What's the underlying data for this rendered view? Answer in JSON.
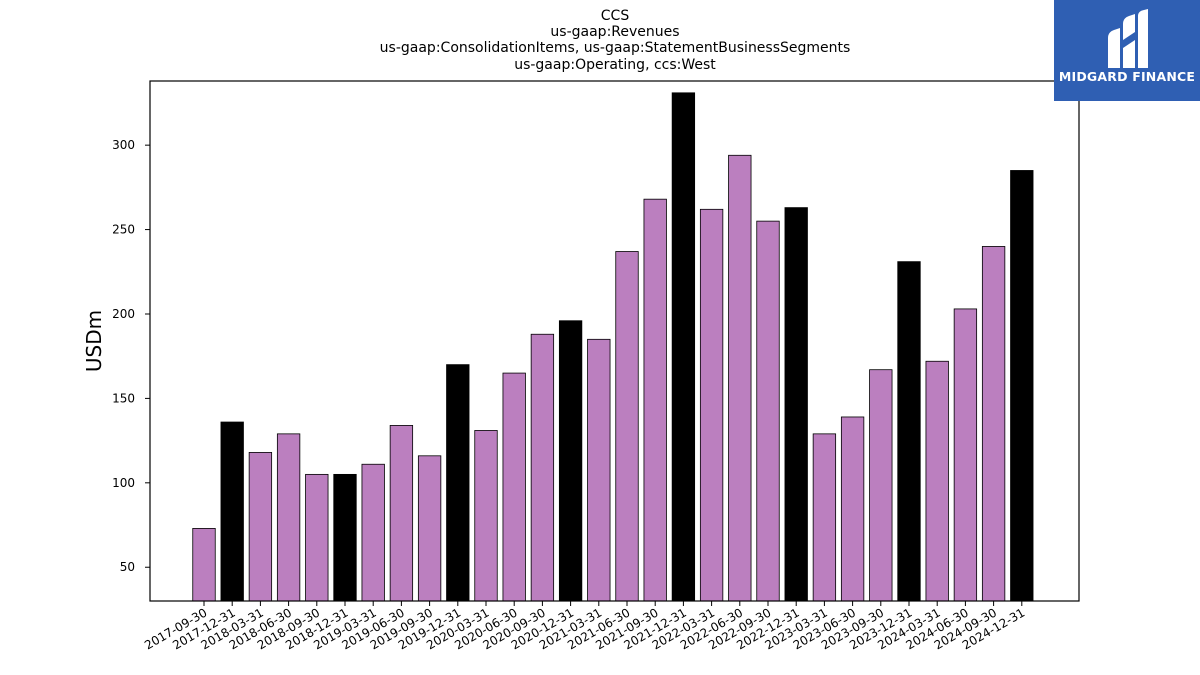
{
  "chart_data": {
    "type": "bar",
    "title_lines": [
      "CCS",
      "us-gaap:Revenues",
      "us-gaap:ConsolidationItems, us-gaap:StatementBusinessSegments",
      "us-gaap:Operating, ccs:West"
    ],
    "xlabel": "",
    "ylabel": "USDm",
    "ylim": [
      30,
      338
    ],
    "yticks": [
      50,
      100,
      150,
      200,
      250,
      300
    ],
    "categories": [
      "2017-09-30",
      "2017-12-31",
      "2018-03-31",
      "2018-06-30",
      "2018-09-30",
      "2018-12-31",
      "2019-03-31",
      "2019-06-30",
      "2019-09-30",
      "2019-12-31",
      "2020-03-31",
      "2020-06-30",
      "2020-09-30",
      "2020-12-31",
      "2021-03-31",
      "2021-06-30",
      "2021-09-30",
      "2021-12-31",
      "2022-03-31",
      "2022-06-30",
      "2022-09-30",
      "2022-12-31",
      "2023-03-31",
      "2023-06-30",
      "2023-09-30",
      "2023-12-31",
      "2024-03-31",
      "2024-06-30",
      "2024-09-30",
      "2024-12-31"
    ],
    "values": [
      73,
      136,
      118,
      129,
      105,
      105,
      111,
      134,
      116,
      170,
      131,
      165,
      188,
      196,
      185,
      237,
      268,
      331,
      262,
      294,
      255,
      263,
      129,
      139,
      167,
      231,
      172,
      203,
      240,
      285
    ],
    "bar_colors": {
      "default": "#bb7fbf",
      "year_end": "#000000",
      "edge": "#000000"
    },
    "grid": false,
    "legend": "none"
  },
  "logo": {
    "text": "MIDGARD FINANCE",
    "background": "#2f5fb3",
    "foreground": "#ffffff",
    "icon": "midgard-m-logo-icon"
  }
}
